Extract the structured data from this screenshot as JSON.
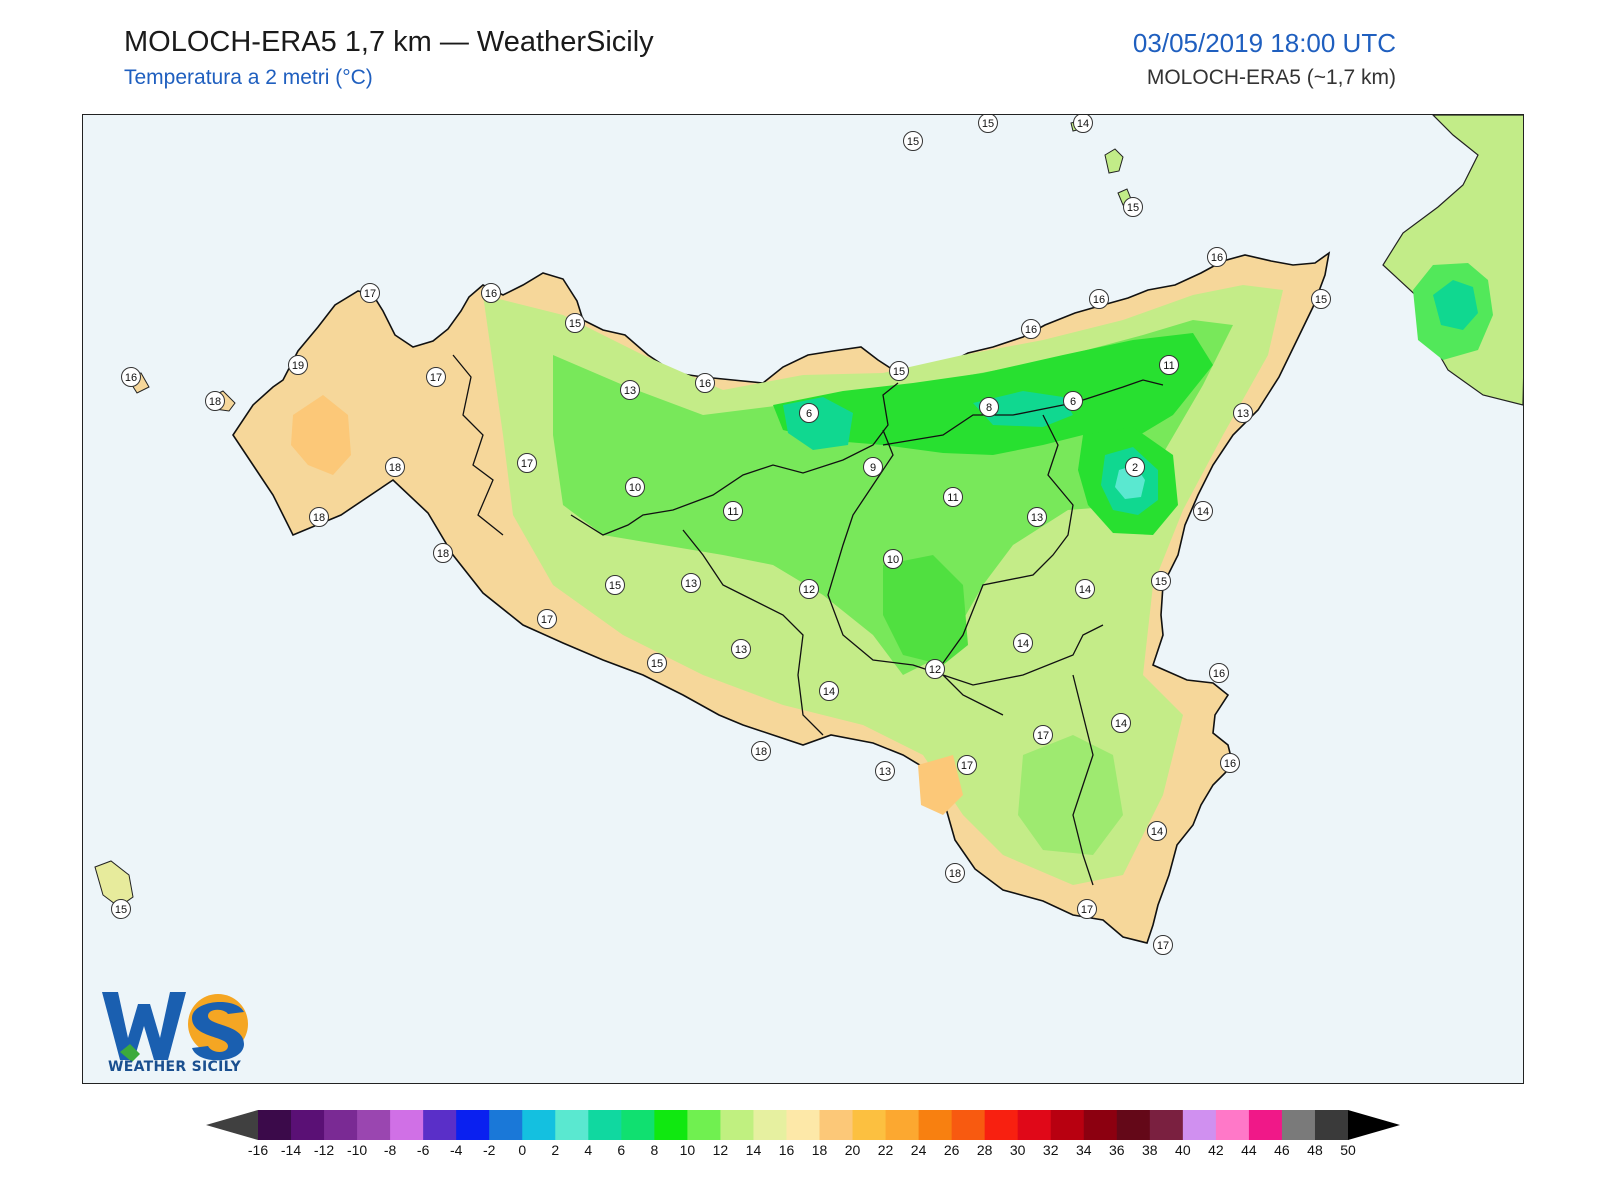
{
  "header": {
    "title": "MOLOCH-ERA5 1,7 km — WeatherSicily",
    "subtitle": "Temperatura a 2 metri (°C)",
    "date": "03/05/2019 18:00 UTC",
    "model": "MOLOCH-ERA5 (~1,7 km)"
  },
  "logo": {
    "text": "WEATHER SICILY",
    "letters": "WS"
  },
  "colorbar": {
    "ticks": [
      "-16",
      "-14",
      "-12",
      "-10",
      "-8",
      "-6",
      "-4",
      "-2",
      "0",
      "2",
      "4",
      "6",
      "8",
      "10",
      "12",
      "14",
      "16",
      "18",
      "20",
      "22",
      "24",
      "26",
      "28",
      "30",
      "32",
      "34",
      "36",
      "38",
      "40",
      "42",
      "44",
      "46",
      "48",
      "50"
    ],
    "colors": [
      "#3b0a4a",
      "#5a1075",
      "#7a2a94",
      "#9a46b0",
      "#d070e6",
      "#5a2fc8",
      "#0a20f0",
      "#1a78d8",
      "#14c0e0",
      "#5ae8d0",
      "#10d8a0",
      "#10e070",
      "#10e810",
      "#70f050",
      "#c0f080",
      "#e6f0a0",
      "#fde8a8",
      "#fcc878",
      "#fcc040",
      "#fca830",
      "#f88010",
      "#f85a10",
      "#f82010",
      "#e00818",
      "#b80010",
      "#8c0010",
      "#640818",
      "#7a2040",
      "#d090f0",
      "#ff78c8",
      "#f01888",
      "#7a7a7a",
      "#3a3a3a"
    ],
    "left_color": "#404040",
    "right_color": "#000000"
  },
  "map": {
    "sea_color": "#edf5f9",
    "labels": [
      {
        "v": "15"
      },
      {
        "v": "15"
      },
      {
        "v": "14"
      },
      {
        "v": "15"
      },
      {
        "v": "16"
      },
      {
        "v": "15"
      },
      {
        "v": "16"
      },
      {
        "v": "16"
      },
      {
        "v": "11"
      },
      {
        "v": "13"
      },
      {
        "v": "14"
      },
      {
        "v": "15"
      },
      {
        "v": "16"
      },
      {
        "v": "16"
      },
      {
        "v": "17"
      },
      {
        "v": "16"
      },
      {
        "v": "19"
      },
      {
        "v": "17"
      },
      {
        "v": "16"
      },
      {
        "v": "18"
      },
      {
        "v": "15"
      },
      {
        "v": "13"
      },
      {
        "v": "16"
      },
      {
        "v": "15"
      },
      {
        "v": "6"
      },
      {
        "v": "8"
      },
      {
        "v": "6"
      },
      {
        "v": "2"
      },
      {
        "v": "9"
      },
      {
        "v": "11"
      },
      {
        "v": "13"
      },
      {
        "v": "10"
      },
      {
        "v": "11"
      },
      {
        "v": "17"
      },
      {
        "v": "18"
      },
      {
        "v": "18"
      },
      {
        "v": "18"
      },
      {
        "v": "15"
      },
      {
        "v": "13"
      },
      {
        "v": "12"
      },
      {
        "v": "10"
      },
      {
        "v": "14"
      },
      {
        "v": "17"
      },
      {
        "v": "15"
      },
      {
        "v": "13"
      },
      {
        "v": "14"
      },
      {
        "v": "12"
      },
      {
        "v": "14"
      },
      {
        "v": "14"
      },
      {
        "v": "17"
      },
      {
        "v": "18"
      },
      {
        "v": "17"
      },
      {
        "v": "13"
      },
      {
        "v": "14"
      },
      {
        "v": "18"
      },
      {
        "v": "17"
      },
      {
        "v": "17"
      },
      {
        "v": "15"
      }
    ]
  }
}
